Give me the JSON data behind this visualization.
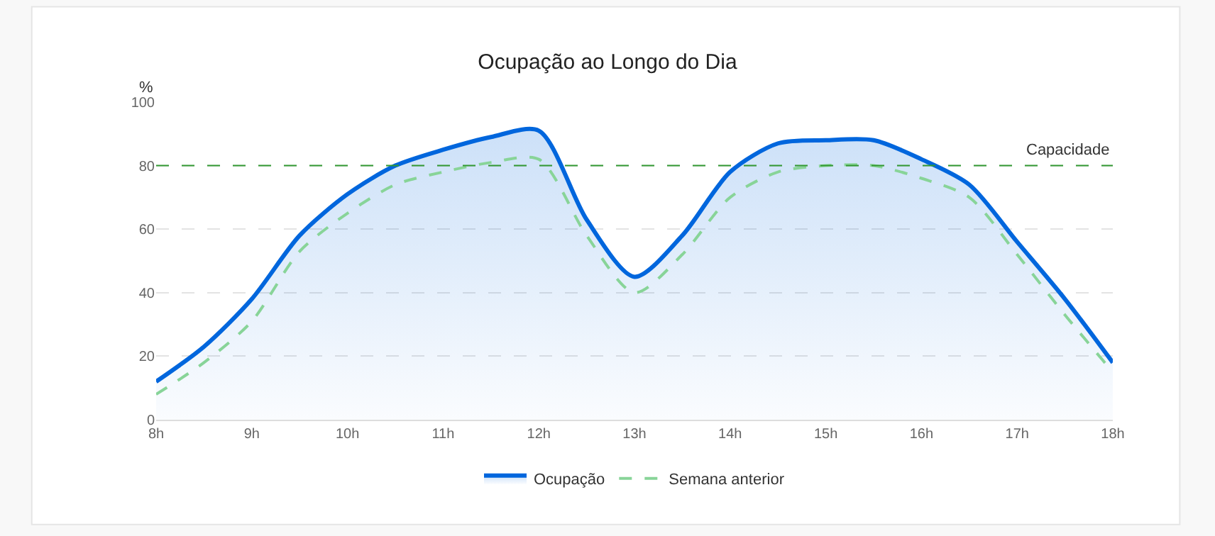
{
  "chart_data": {
    "type": "line",
    "title": "Ocupação ao Longo do Dia",
    "ylabel": "%",
    "x": [
      8,
      8.5,
      9,
      9.5,
      10,
      10.5,
      11,
      11.5,
      12,
      12.5,
      13,
      13.5,
      14,
      14.5,
      15,
      15.5,
      16,
      16.5,
      17,
      17.5,
      18
    ],
    "series": [
      {
        "name": "Ocupação",
        "color": "#0066dd",
        "type": "area",
        "line_style": "solid",
        "values": [
          12,
          23,
          38,
          58,
          71,
          80,
          85,
          89,
          91,
          63,
          45,
          58,
          78,
          87,
          88,
          88,
          82,
          74,
          56,
          38,
          18
        ]
      },
      {
        "name": "Semana anterior",
        "color": "#88d498",
        "line_style": "dashed",
        "values": [
          8,
          18,
          31,
          53,
          65,
          74,
          78,
          81,
          82,
          58,
          40,
          52,
          70,
          78,
          80,
          80,
          76,
          70,
          52,
          33,
          15
        ]
      }
    ],
    "xlim": [
      8,
      18
    ],
    "xticks": [
      {
        "value": 8,
        "label": "8h"
      },
      {
        "value": 9,
        "label": "9h"
      },
      {
        "value": 10,
        "label": "10h"
      },
      {
        "value": 11,
        "label": "11h"
      },
      {
        "value": 12,
        "label": "12h"
      },
      {
        "value": 13,
        "label": "13h"
      },
      {
        "value": 14,
        "label": "14h"
      },
      {
        "value": 15,
        "label": "15h"
      },
      {
        "value": 16,
        "label": "16h"
      },
      {
        "value": 17,
        "label": "17h"
      },
      {
        "value": 18,
        "label": "18h"
      }
    ],
    "ylim": [
      0,
      100
    ],
    "yticks": [
      0,
      20,
      40,
      60,
      80,
      100
    ],
    "ref_lines": [
      {
        "axis": "y",
        "value": 80,
        "label": "Capacidade",
        "color": "#339933",
        "line_style": "dashed"
      }
    ],
    "grid": "y",
    "legend": "bottom",
    "marker": "none"
  }
}
